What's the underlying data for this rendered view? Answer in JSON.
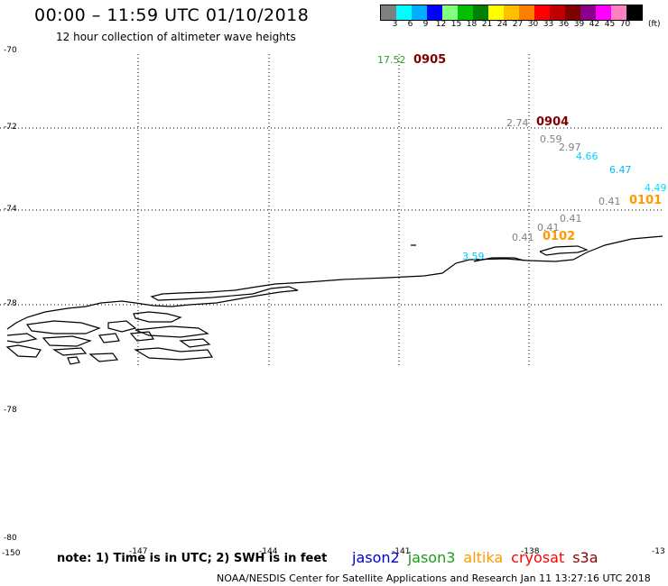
{
  "header": {
    "title": "00:00 – 11:59 UTC 01/10/2018",
    "subtitle": "12 hour collection of altimeter wave heights"
  },
  "colorbar": {
    "colors": [
      "#808080",
      "#00ffff",
      "#00b0ff",
      "#0000ff",
      "#80ff80",
      "#00c000",
      "#008000",
      "#ffff00",
      "#ffc000",
      "#ff8000",
      "#ff0000",
      "#c00000",
      "#800000",
      "#8b008b",
      "#ff00ff",
      "#ff80c0",
      "#000000"
    ],
    "ticks": [
      "3",
      "6",
      "9",
      "12",
      "15",
      "18",
      "21",
      "24",
      "27",
      "30",
      "33",
      "36",
      "39",
      "42",
      "45",
      "70"
    ],
    "units": "(ft)"
  },
  "lat_labels": [
    "-70",
    "-72",
    "-74",
    "-78",
    "-78",
    "-80"
  ],
  "lon_labels": [
    "-150",
    "-147",
    "-144",
    "-141",
    "-138",
    "-13"
  ],
  "wave_heights": [
    {
      "value": "17.52",
      "color": "#2ca02c"
    },
    {
      "value": "2.74",
      "color": "#808080"
    },
    {
      "value": "0.59",
      "color": "#808080"
    },
    {
      "value": "2.97",
      "color": "#808080"
    },
    {
      "value": "4.66",
      "color": "#00d0ff"
    },
    {
      "value": "6.47",
      "color": "#00b8ff"
    },
    {
      "value": "4.49",
      "color": "#00e0ff"
    },
    {
      "value": "0.41",
      "color": "#808080"
    },
    {
      "value": "0.41",
      "color": "#808080"
    },
    {
      "value": "0.41",
      "color": "#808080"
    },
    {
      "value": "0.41",
      "color": "#808080"
    },
    {
      "value": "3.59",
      "color": "#00c8ff"
    }
  ],
  "passes": [
    {
      "time": "0905",
      "color": "#800000"
    },
    {
      "time": "0904",
      "color": "#800000"
    },
    {
      "time": "0101",
      "color": "#ff9900"
    },
    {
      "time": "0102",
      "color": "#ff9900"
    }
  ],
  "note": "note:  1) Time is in UTC;  2) SWH is in feet",
  "satellites": [
    {
      "name": "jason2",
      "color": "#0000cc"
    },
    {
      "name": "jason3",
      "color": "#1a9e1a"
    },
    {
      "name": "altika",
      "color": "#ff9900"
    },
    {
      "name": "cryosat",
      "color": "#ff0000"
    },
    {
      "name": "s3a",
      "color": "#8b0000"
    }
  ],
  "footer": "NOAA/NESDIS Center for Satellite Applications and Research    Jan 11 13:27:16 UTC 2018"
}
